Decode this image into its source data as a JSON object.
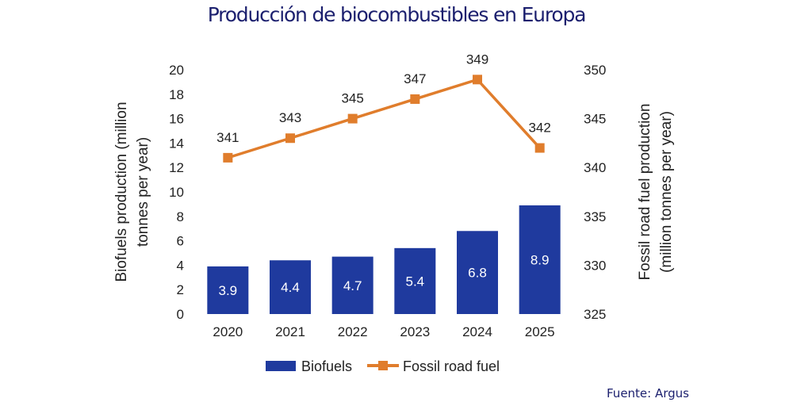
{
  "title": "Producción de biocombustibles en Europa",
  "source": "Fuente:  Argus",
  "chart_data": {
    "type": "bar+line",
    "categories": [
      "2020",
      "2021",
      "2022",
      "2023",
      "2024",
      "2025"
    ],
    "series": [
      {
        "name": "Biofuels",
        "type": "bar",
        "axis": "left",
        "values": [
          3.9,
          4.4,
          4.7,
          5.4,
          6.8,
          8.9
        ],
        "color": "#1f3a9e",
        "labels": [
          "3.9",
          "4.4",
          "4.7",
          "5.4",
          "6.8",
          "8.9"
        ]
      },
      {
        "name": "Fossil road fuel",
        "type": "line",
        "axis": "right",
        "values": [
          341,
          343,
          345,
          347,
          349,
          342
        ],
        "color": "#e07d2c",
        "labels": [
          "341",
          "343",
          "345",
          "347",
          "349",
          "342"
        ]
      }
    ],
    "ylabel_left": [
      "Biofuels production (million",
      "tonnes per year)"
    ],
    "ylabel_right": [
      "Fossil road fuel production",
      "(million tonnes per year)"
    ],
    "ylim_left": [
      0,
      20
    ],
    "yticks_left": [
      "0",
      "2",
      "4",
      "6",
      "8",
      "10",
      "12",
      "14",
      "16",
      "18",
      "20"
    ],
    "ylim_right": [
      325,
      350
    ],
    "yticks_right": [
      "325",
      "330",
      "335",
      "340",
      "345",
      "350"
    ],
    "grid": false,
    "legend": "bottom"
  }
}
